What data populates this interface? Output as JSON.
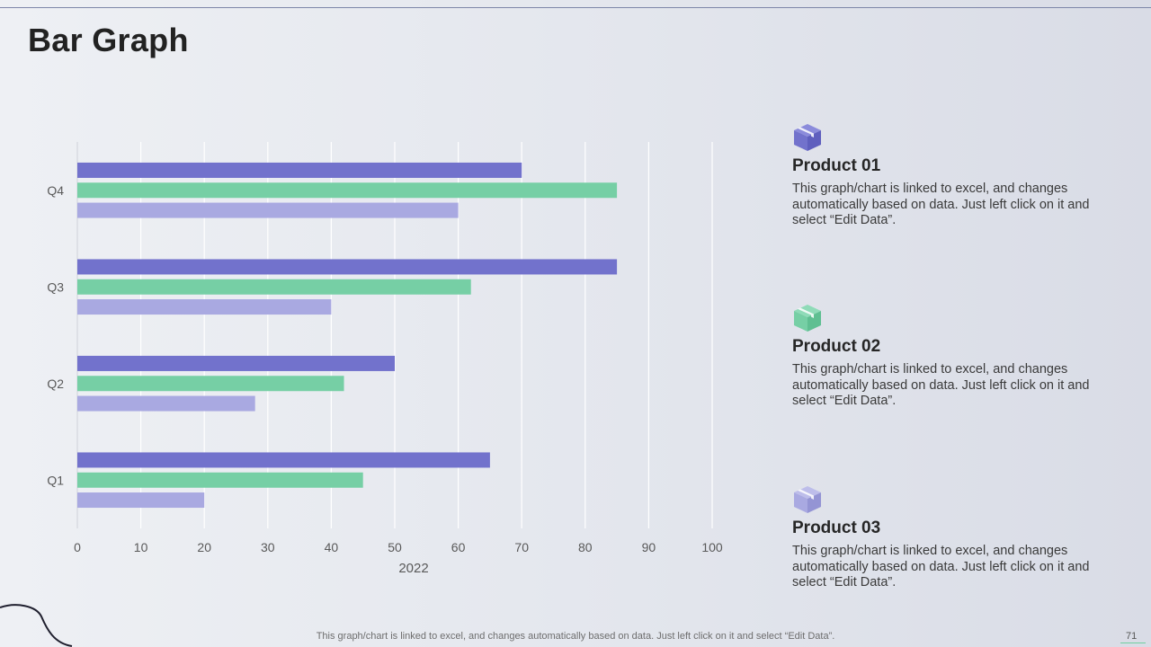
{
  "title": "Bar Graph",
  "colors": {
    "product1": "#7272cc",
    "product2": "#76cfa5",
    "product3": "#a9a9e1"
  },
  "chart_data": {
    "type": "bar",
    "orientation": "horizontal",
    "categories": [
      "Q1",
      "Q2",
      "Q3",
      "Q4"
    ],
    "series": [
      {
        "name": "Product 01",
        "values": [
          65,
          50,
          85,
          70
        ]
      },
      {
        "name": "Product 02",
        "values": [
          45,
          42,
          62,
          85
        ]
      },
      {
        "name": "Product 03",
        "values": [
          20,
          28,
          40,
          60
        ]
      }
    ],
    "xlim": [
      0,
      100
    ],
    "xticks": [
      0,
      10,
      20,
      30,
      40,
      50,
      60,
      70,
      80,
      90,
      100
    ],
    "xlabel": "2022",
    "ylabel": "",
    "grid": true
  },
  "products": [
    {
      "name": "Product 01",
      "desc": "This graph/chart is linked to excel, and changes automatically based on data. Just left click on it and select “Edit Data”.",
      "icon": "box-icon"
    },
    {
      "name": "Product 02",
      "desc": "This graph/chart is linked to excel, and changes automatically based on data. Just left click on it and select “Edit Data”.",
      "icon": "box-icon"
    },
    {
      "name": "Product 03",
      "desc": "This graph/chart is linked to excel, and changes automatically based on data. Just left click on it and select “Edit Data”.",
      "icon": "box-icon"
    }
  ],
  "footer": "This graph/chart is linked to excel, and changes automatically based on data. Just left click on it and select “Edit Data”.",
  "page_number": "71"
}
